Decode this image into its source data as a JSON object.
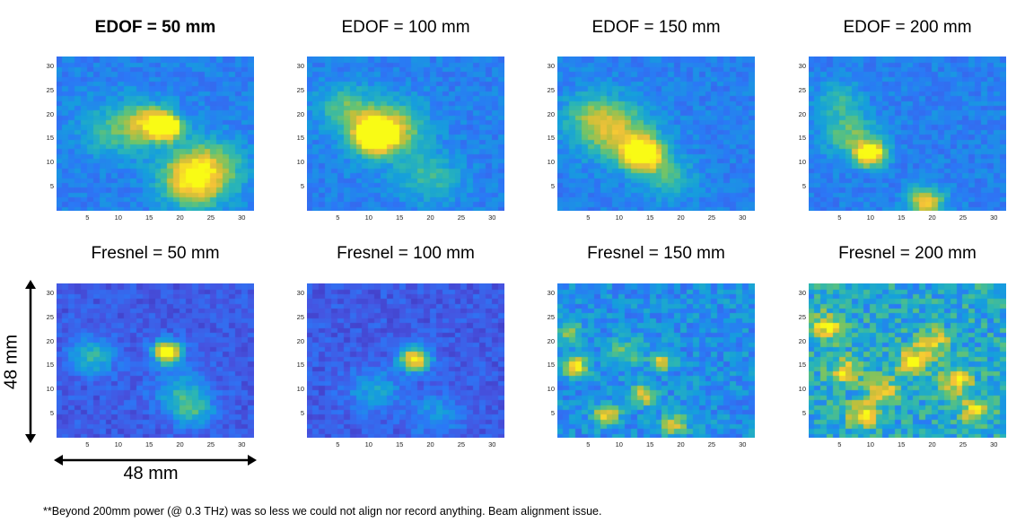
{
  "chart_data": {
    "type": "heatmap",
    "rows": [
      {
        "panels": [
          {
            "title": "EDOF = 50 mm",
            "spots": [
              [
                15.5,
                18.5,
                0.55,
                2.5
              ],
              [
                18,
                17.5,
                0.95,
                1.6
              ],
              [
                24,
                9,
                0.5,
                4
              ],
              [
                22,
                6,
                0.45,
                3.5
              ],
              [
                10,
                17,
                0.3,
                4
              ]
            ]
          },
          {
            "title": "EDOF = 100 mm",
            "spots": [
              [
                11,
                16,
                0.95,
                2.2
              ],
              [
                13,
                17,
                0.55,
                4
              ],
              [
                6,
                22,
                0.3,
                3
              ],
              [
                20,
                7,
                0.25,
                3.5
              ]
            ]
          },
          {
            "title": "EDOF = 150 mm",
            "spots": [
              [
                14,
                12,
                0.95,
                2.2
              ],
              [
                10,
                16,
                0.45,
                4
              ],
              [
                6,
                20,
                0.3,
                3.5
              ],
              [
                18,
                7,
                0.25,
                3
              ]
            ]
          },
          {
            "title": "EDOF = 200 mm",
            "spots": [
              [
                10,
                12,
                0.95,
                1.7
              ],
              [
                7,
                16,
                0.35,
                3
              ],
              [
                19,
                2,
                0.6,
                2
              ],
              [
                5,
                23,
                0.25,
                2.5
              ]
            ]
          }
        ]
      },
      {
        "panels": [
          {
            "title": "Fresnel = 50 mm",
            "spots": [
              [
                18,
                18,
                0.95,
                1.6
              ],
              [
                6,
                17,
                0.35,
                2.5
              ],
              [
                22,
                6,
                0.35,
                2.5
              ],
              [
                20,
                10,
                0.25,
                3
              ]
            ]
          },
          {
            "title": "Fresnel = 100 mm",
            "spots": [
              [
                17.5,
                16.5,
                0.85,
                1.7
              ],
              [
                11,
                10,
                0.25,
                3
              ],
              [
                21,
                5,
                0.2,
                3
              ]
            ]
          },
          {
            "title": "Fresnel = 150 mm",
            "spots": [
              [
                3,
                15,
                0.6,
                1.5
              ],
              [
                8,
                5,
                0.55,
                1.5
              ],
              [
                14,
                9,
                0.5,
                1.5
              ],
              [
                17,
                16,
                0.55,
                1.2
              ],
              [
                19,
                3,
                0.5,
                1.5
              ],
              [
                2,
                22,
                0.4,
                1.5
              ],
              [
                11,
                18,
                0.3,
                2
              ]
            ]
          },
          {
            "title": "Fresnel = 200 mm",
            "spots": [
              [
                3,
                23,
                0.5,
                2
              ],
              [
                9,
                5,
                0.55,
                1.8
              ],
              [
                17,
                16,
                0.6,
                1.8
              ],
              [
                24,
                12,
                0.5,
                1.8
              ],
              [
                12,
                10,
                0.45,
                1.8
              ],
              [
                20,
                20,
                0.45,
                1.8
              ],
              [
                27,
                6,
                0.45,
                1.8
              ],
              [
                6,
                14,
                0.45,
                1.8
              ]
            ]
          }
        ]
      }
    ],
    "x_ticks": [
      5,
      10,
      15,
      20,
      25,
      30
    ],
    "y_ticks": [
      5,
      10,
      15,
      20,
      25,
      30
    ],
    "xlim": [
      0,
      32
    ],
    "ylim": [
      0,
      32
    ],
    "colormap": "parula",
    "colormap_stops": [
      "#3e26a8",
      "#4653e0",
      "#2b78f6",
      "#159fdc",
      "#2bb6b4",
      "#6bc46c",
      "#c3bf3a",
      "#f4c238",
      "#f9fb15"
    ]
  },
  "annotations": {
    "height_label": "48 mm",
    "width_label": "48 mm",
    "footnote": "**Beyond 200mm  power  (@ 0.3 THz)  was so less we could not align nor record anything. Beam alignment issue."
  }
}
